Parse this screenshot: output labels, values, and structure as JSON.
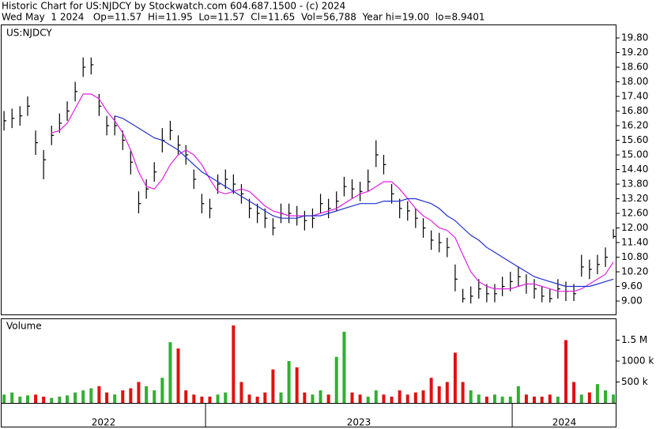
{
  "chart_data": {
    "type": "stock",
    "title": "Historic Chart for US:NJDCY by Stockwatch.com 604.687.1500 - (c) 2024",
    "subtitle": "Wed May  1 2024   Op=11.57  Hi=11.95  Lo=11.57  Cl=11.65  Vol=56,788  Year hi=19.00  lo=8.9401",
    "panel_label": "US:NJDCY",
    "xlim": [
      2022.335,
      2024.34
    ],
    "xticks": [
      2023,
      2024
    ],
    "x_labels": [
      "2022",
      "2023",
      "2024"
    ],
    "x": [
      2022.343,
      2022.369,
      2022.395,
      2022.42,
      2022.446,
      2022.472,
      2022.498,
      2022.524,
      2022.549,
      2022.575,
      2022.601,
      2022.627,
      2022.653,
      2022.678,
      2022.704,
      2022.73,
      2022.756,
      2022.782,
      2022.807,
      2022.833,
      2022.859,
      2022.885,
      2022.911,
      2022.936,
      2022.962,
      2022.988,
      2023.014,
      2023.04,
      2023.065,
      2023.091,
      2023.117,
      2023.143,
      2023.169,
      2023.194,
      2023.22,
      2023.246,
      2023.272,
      2023.298,
      2023.323,
      2023.349,
      2023.375,
      2023.401,
      2023.427,
      2023.452,
      2023.478,
      2023.504,
      2023.53,
      2023.556,
      2023.581,
      2023.607,
      2023.633,
      2023.659,
      2023.685,
      2023.71,
      2023.736,
      2023.762,
      2023.788,
      2023.814,
      2023.839,
      2023.865,
      2023.891,
      2023.917,
      2023.943,
      2023.968,
      2023.994,
      2024.02,
      2024.046,
      2024.072,
      2024.097,
      2024.123,
      2024.149,
      2024.175,
      2024.201,
      2024.226,
      2024.252,
      2024.278,
      2024.304,
      2024.33
    ],
    "close": [
      16.4,
      16.5,
      16.6,
      17.0,
      15.5,
      14.8,
      15.8,
      16.3,
      16.8,
      17.6,
      18.6,
      18.7,
      17.0,
      16.2,
      16.2,
      15.6,
      14.7,
      13.0,
      13.6,
      14.3,
      15.6,
      16.0,
      15.4,
      15.0,
      14.0,
      13.0,
      12.8,
      13.8,
      14.0,
      13.8,
      13.4,
      12.8,
      12.6,
      12.4,
      12.0,
      12.6,
      12.6,
      12.5,
      12.3,
      12.4,
      13.0,
      12.8,
      13.1,
      13.7,
      13.6,
      13.5,
      13.9,
      15.0,
      14.6,
      13.4,
      12.8,
      12.7,
      12.4,
      12.0,
      11.5,
      11.4,
      11.2,
      9.9,
      9.1,
      9.2,
      9.5,
      9.3,
      9.3,
      9.6,
      9.8,
      10.0,
      9.7,
      9.5,
      9.2,
      9.1,
      9.5,
      9.4,
      9.3,
      10.4,
      10.3,
      10.5,
      10.8,
      11.65
    ],
    "high": [
      16.8,
      16.9,
      17.0,
      17.4,
      16.0,
      15.2,
      16.2,
      16.7,
      17.2,
      18.0,
      19.0,
      19.0,
      17.5,
      16.6,
      16.6,
      16.0,
      15.2,
      13.5,
      14.0,
      14.7,
      16.1,
      16.4,
      15.8,
      15.4,
      14.4,
      13.4,
      13.2,
      14.2,
      14.4,
      14.2,
      13.8,
      13.2,
      13.0,
      12.8,
      12.4,
      13.0,
      13.0,
      12.9,
      12.7,
      12.8,
      13.4,
      13.2,
      13.5,
      14.1,
      14.0,
      13.9,
      14.4,
      15.6,
      15.0,
      13.8,
      13.2,
      13.1,
      12.8,
      12.4,
      11.9,
      11.8,
      11.6,
      10.5,
      9.5,
      9.6,
      9.9,
      9.7,
      9.7,
      10.0,
      10.2,
      10.4,
      10.1,
      9.9,
      9.6,
      9.5,
      9.9,
      9.8,
      9.7,
      10.9,
      10.7,
      10.9,
      11.2,
      11.95
    ],
    "low": [
      16.0,
      16.1,
      16.2,
      16.6,
      15.0,
      14.0,
      15.4,
      15.9,
      16.4,
      17.2,
      18.2,
      18.3,
      16.6,
      15.8,
      15.8,
      15.2,
      14.2,
      12.6,
      13.2,
      13.9,
      15.1,
      15.6,
      15.0,
      14.6,
      13.6,
      12.6,
      12.4,
      13.4,
      13.6,
      13.4,
      13.0,
      12.4,
      12.2,
      12.0,
      11.7,
      12.2,
      12.2,
      12.1,
      11.9,
      12.0,
      12.6,
      12.4,
      12.7,
      13.3,
      13.2,
      13.1,
      13.5,
      14.5,
      14.2,
      13.0,
      12.4,
      12.3,
      12.0,
      11.6,
      11.1,
      11.0,
      10.8,
      9.4,
      8.94,
      8.9,
      9.1,
      8.95,
      8.95,
      9.2,
      9.4,
      9.6,
      9.3,
      9.1,
      8.95,
      8.94,
      9.1,
      9.0,
      9.0,
      10.0,
      9.9,
      10.1,
      10.4,
      11.57
    ],
    "bar_color": "#000000",
    "ylim": [
      8.45,
      20.32
    ],
    "yticks": [
      {
        "value": 9,
        "label": "9.00"
      },
      {
        "value": 9.6,
        "label": "9.60"
      },
      {
        "value": 10.2,
        "label": "10.20"
      },
      {
        "value": 10.8,
        "label": "10.80"
      },
      {
        "value": 11.4,
        "label": "11.40"
      },
      {
        "value": 12,
        "label": "12.00"
      },
      {
        "value": 12.6,
        "label": "12.60"
      },
      {
        "value": 13.2,
        "label": "13.20"
      },
      {
        "value": 13.8,
        "label": "13.80"
      },
      {
        "value": 14.4,
        "label": "14.40"
      },
      {
        "value": 15,
        "label": "15.00"
      },
      {
        "value": 15.6,
        "label": "15.60"
      },
      {
        "value": 16.2,
        "label": "16.20"
      },
      {
        "value": 16.8,
        "label": "16.80"
      },
      {
        "value": 17.4,
        "label": "17.40"
      },
      {
        "value": 18,
        "label": "18.00"
      },
      {
        "value": 18.6,
        "label": "18.60"
      },
      {
        "value": 19.2,
        "label": "19.20"
      },
      {
        "value": 19.8,
        "label": "19.80"
      }
    ],
    "moving_averages": [
      {
        "color": "#e020e0",
        "values": [
          null,
          null,
          null,
          null,
          null,
          null,
          15.9,
          16.0,
          16.3,
          16.9,
          17.5,
          17.5,
          17.3,
          16.8,
          16.4,
          15.9,
          15.2,
          14.3,
          13.7,
          13.6,
          14.0,
          14.6,
          15.0,
          15.2,
          15.0,
          14.6,
          14.0,
          13.5,
          13.4,
          13.5,
          13.6,
          13.5,
          13.2,
          12.9,
          12.7,
          12.6,
          12.5,
          12.5,
          12.5,
          12.5,
          12.6,
          12.7,
          12.8,
          13.0,
          13.2,
          13.4,
          13.5,
          13.7,
          13.9,
          13.9,
          13.6,
          13.2,
          12.8,
          12.5,
          12.3,
          12.0,
          11.9,
          11.6,
          10.9,
          10.2,
          9.8,
          9.6,
          9.5,
          9.5,
          9.5,
          9.6,
          9.7,
          9.7,
          9.6,
          9.5,
          9.4,
          9.4,
          9.4,
          9.5,
          9.7,
          9.9,
          10.1,
          10.6
        ]
      },
      {
        "color": "#2030d0",
        "values": [
          null,
          null,
          null,
          null,
          null,
          null,
          null,
          null,
          null,
          null,
          null,
          null,
          null,
          null,
          16.6,
          16.5,
          16.3,
          16.1,
          15.9,
          15.7,
          15.6,
          15.4,
          15.2,
          14.9,
          14.6,
          14.3,
          14.1,
          13.9,
          13.7,
          13.5,
          13.3,
          13.1,
          12.9,
          12.7,
          12.5,
          12.4,
          12.4,
          12.4,
          12.5,
          12.5,
          12.5,
          12.6,
          12.7,
          12.8,
          12.9,
          13.0,
          13.0,
          13.0,
          13.1,
          13.1,
          13.1,
          13.2,
          13.2,
          13.1,
          13.0,
          12.8,
          12.5,
          12.3,
          12.0,
          11.7,
          11.5,
          11.2,
          11.0,
          10.8,
          10.6,
          10.4,
          10.2,
          10.0,
          9.9,
          9.8,
          9.7,
          9.6,
          9.6,
          9.6,
          9.6,
          9.7,
          9.8,
          9.9
        ]
      }
    ],
    "volume": {
      "label": "Volume",
      "up_color": "#30b030",
      "down_color": "#e01010",
      "ylim": [
        0,
        2000000
      ],
      "yticks": [
        {
          "value": 500000,
          "label": "500 k"
        },
        {
          "value": 1000000,
          "label": "1000 k"
        },
        {
          "value": 1500000,
          "label": "1.5 M"
        }
      ],
      "values": [
        200000,
        250000,
        150000,
        180000,
        200000,
        150000,
        120000,
        150000,
        180000,
        250000,
        300000,
        350000,
        400000,
        250000,
        200000,
        300000,
        350000,
        500000,
        400000,
        300000,
        600000,
        1450000,
        1300000,
        300000,
        200000,
        150000,
        150000,
        200000,
        250000,
        1850000,
        500000,
        200000,
        150000,
        250000,
        800000,
        250000,
        1000000,
        850000,
        250000,
        200000,
        300000,
        200000,
        1100000,
        1700000,
        250000,
        200000,
        150000,
        300000,
        200000,
        150000,
        300000,
        200000,
        250000,
        300000,
        600000,
        400000,
        500000,
        1200000,
        500000,
        300000,
        200000,
        150000,
        200000,
        150000,
        150000,
        400000,
        200000,
        150000,
        150000,
        200000,
        150000,
        1500000,
        500000,
        200000,
        250000,
        450000,
        300000,
        200000
      ]
    }
  }
}
